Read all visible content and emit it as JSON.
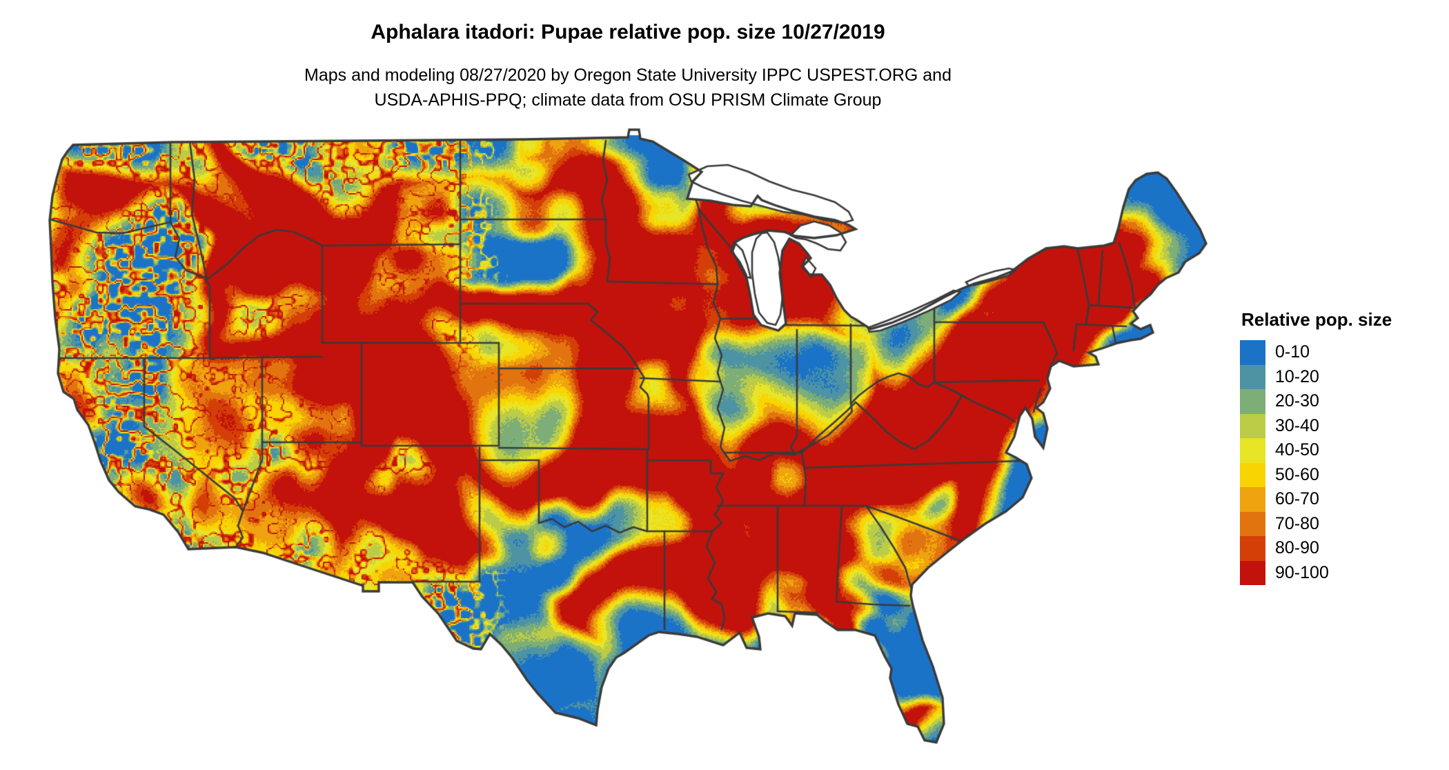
{
  "title": "Aphalara itadori: Pupae relative pop. size 10/27/2019",
  "subtitle": {
    "line1": "Maps and modeling 08/27/2020 by Oregon State University IPPC USPEST.ORG and",
    "line2": "USDA-APHIS-PPQ; climate data from OSU PRISM Climate Group"
  },
  "legend": {
    "title": "Relative pop. size",
    "entries": [
      {
        "label": "0-10",
        "color": "#1B73C8"
      },
      {
        "label": "10-20",
        "color": "#4D93A4"
      },
      {
        "label": "20-30",
        "color": "#7DAE78"
      },
      {
        "label": "30-40",
        "color": "#BCCC46"
      },
      {
        "label": "40-50",
        "color": "#E8E426"
      },
      {
        "label": "50-60",
        "color": "#F8D402"
      },
      {
        "label": "60-70",
        "color": "#EEA30F"
      },
      {
        "label": "70-80",
        "color": "#E2740F"
      },
      {
        "label": "80-90",
        "color": "#D43F08"
      },
      {
        "label": "90-100",
        "color": "#C2120B"
      }
    ]
  },
  "map": {
    "region": "Continental United States",
    "kind": "raster heat map of relative population size",
    "background_color": "#FFFFFF",
    "boundary_color": "#3A3A3A",
    "base_fill_color": "#1B73C8"
  }
}
